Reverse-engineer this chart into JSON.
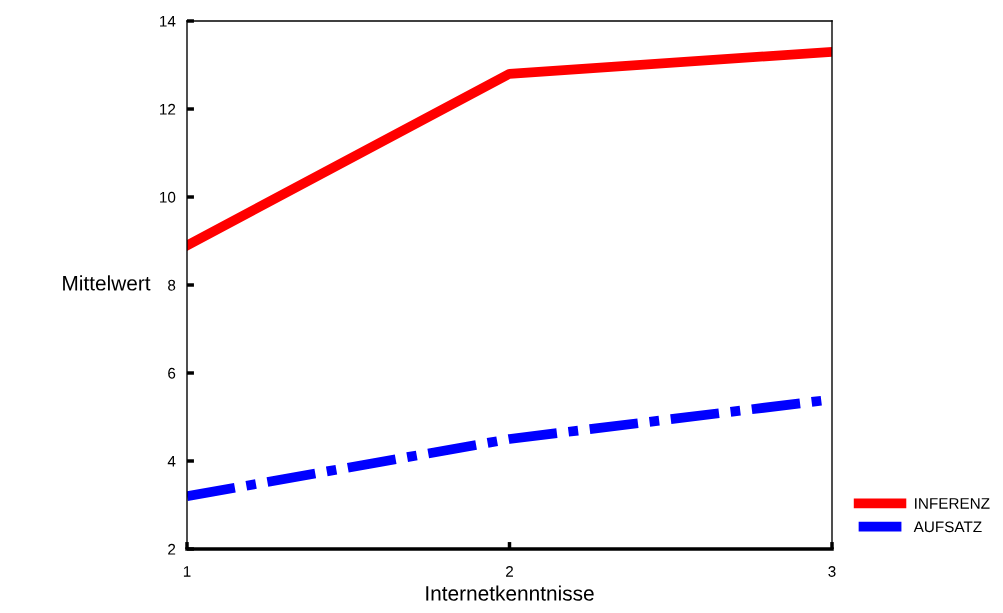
{
  "chart_data": {
    "type": "line",
    "xlabel": "Internetkenntnisse",
    "ylabel": "Mittelwert",
    "x": [
      1,
      2,
      3
    ],
    "series": [
      {
        "name": "INFERENZ",
        "color": "#ff0000",
        "values": [
          8.9,
          12.8,
          13.3
        ],
        "line_style": "solid"
      },
      {
        "name": "AUFSATZ",
        "color": "#0000ff",
        "values": [
          3.2,
          4.5,
          5.4
        ],
        "line_style": "dashdot"
      }
    ],
    "xlim": [
      1,
      3
    ],
    "xticks": [
      1,
      2,
      3
    ],
    "ylim": [
      2,
      14
    ],
    "yticks": [
      2,
      4,
      6,
      8,
      10,
      12,
      14
    ],
    "grid": false,
    "legend": "right",
    "marker": "none"
  }
}
